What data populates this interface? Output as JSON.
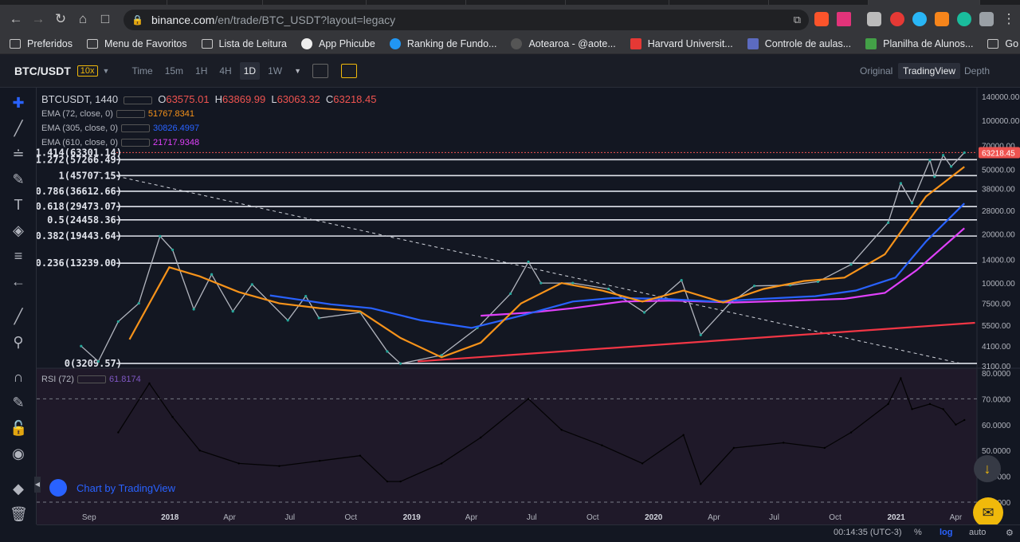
{
  "browser": {
    "url_host": "binance.com",
    "url_path": "/en/trade/BTC_USDT?layout=legacy",
    "bookmarks": [
      "Preferidos",
      "Menu de Favoritos",
      "Lista de Leitura",
      "App Phicube",
      "Ranking de Fundo...",
      "Aotearoa - @aote...",
      "Harvard Universit...",
      "Controle de aulas...",
      "Planilha de Alunos...",
      "Go English"
    ]
  },
  "toolbar": {
    "pair": "BTC/USDT",
    "leverage": "10x",
    "timeframes": [
      "Time",
      "15m",
      "1H",
      "4H",
      "1D",
      "1W"
    ],
    "active_timeframe": "1D",
    "views": [
      "Original",
      "TradingView",
      "Depth"
    ],
    "active_view": "TradingView"
  },
  "legend": {
    "symbol": "BTCUSDT, 1440",
    "open_label": "O",
    "open": "63575.01",
    "high_label": "H",
    "high": "63869.99",
    "low_label": "L",
    "low": "63063.32",
    "close_label": "C",
    "close": "63218.45",
    "ema72_label": "EMA (72, close, 0)",
    "ema72_value": "51767.8341",
    "ema72_color": "#f7931a",
    "ema305_label": "EMA (305, close, 0)",
    "ema305_value": "30826.4997",
    "ema305_color": "#2962ff",
    "ema610_label": "EMA (610, close, 0)",
    "ema610_value": "21717.9348",
    "ema610_color": "#e040fb",
    "rsi_label": "RSI (72)",
    "rsi_value": "61.8174"
  },
  "chart_data": {
    "type": "line",
    "price_axis_ticks": [
      "140000.00",
      "100000.00",
      "70000.00",
      "50000.00",
      "38000.00",
      "28000.00",
      "20000.00",
      "14000.00",
      "10000.00",
      "7500.00",
      "5500.00",
      "4100.00",
      "3100.00"
    ],
    "rsi_axis_ticks": [
      "80.0000",
      "70.0000",
      "60.0000",
      "50.0000",
      "40.0000",
      "30.0000"
    ],
    "time_axis_ticks": [
      "Sep",
      "2018",
      "Apr",
      "Jul",
      "Oct",
      "2019",
      "Apr",
      "Jul",
      "Oct",
      "2020",
      "Apr",
      "Jul",
      "Oct",
      "2021",
      "Apr"
    ],
    "last_price": "63218.45",
    "fib_levels": [
      {
        "label": "1.414(63301.14)",
        "price": 63301.14
      },
      {
        "label": "1.272(57266.49)",
        "price": 57266.49
      },
      {
        "label": "1(45707.15)",
        "price": 45707.15
      },
      {
        "label": "0.786(36612.66)",
        "price": 36612.66
      },
      {
        "label": "0.618(29473.07)",
        "price": 29473.07
      },
      {
        "label": "0.5(24458.36)",
        "price": 24458.36
      },
      {
        "label": "0.382(19443.64)",
        "price": 19443.64
      },
      {
        "label": "0.236(13239.00)",
        "price": 13239.0
      },
      {
        "label": "0(3209.57)",
        "price": 3209.57
      }
    ],
    "close_series": [
      [
        "2017-08-20",
        4100
      ],
      [
        "2017-09-15",
        3300
      ],
      [
        "2017-10-15",
        5800
      ],
      [
        "2017-11-15",
        7500
      ],
      [
        "2017-12-17",
        19400
      ],
      [
        "2018-01-05",
        16000
      ],
      [
        "2018-02-06",
        6900
      ],
      [
        "2018-03-05",
        11300
      ],
      [
        "2018-04-06",
        6700
      ],
      [
        "2018-05-05",
        9800
      ],
      [
        "2018-06-28",
        5900
      ],
      [
        "2018-07-25",
        8300
      ],
      [
        "2018-08-14",
        6100
      ],
      [
        "2018-10-15",
        6600
      ],
      [
        "2018-11-25",
        3800
      ],
      [
        "2018-12-15",
        3200
      ],
      [
        "2019-02-15",
        3600
      ],
      [
        "2019-04-10",
        5300
      ],
      [
        "2019-05-30",
        8600
      ],
      [
        "2019-06-26",
        13500
      ],
      [
        "2019-07-15",
        10000
      ],
      [
        "2019-09-01",
        10000
      ],
      [
        "2019-10-25",
        9200
      ],
      [
        "2019-12-18",
        6600
      ],
      [
        "2020-02-12",
        10400
      ],
      [
        "2020-03-12",
        4800
      ],
      [
        "2020-04-25",
        7500
      ],
      [
        "2020-06-01",
        9600
      ],
      [
        "2020-07-25",
        9700
      ],
      [
        "2020-09-05",
        10200
      ],
      [
        "2020-10-25",
        13000
      ],
      [
        "2020-12-20",
        23500
      ],
      [
        "2021-01-08",
        41000
      ],
      [
        "2021-01-25",
        31000
      ],
      [
        "2021-02-21",
        57000
      ],
      [
        "2021-02-28",
        45000
      ],
      [
        "2021-03-13",
        61000
      ],
      [
        "2021-03-25",
        52000
      ],
      [
        "2021-04-14",
        63218
      ]
    ],
    "ema72_series": [
      [
        "2017-11-01",
        4500
      ],
      [
        "2017-12-31",
        12500
      ],
      [
        "2018-02-15",
        11000
      ],
      [
        "2018-04-15",
        8800
      ],
      [
        "2018-06-15",
        7500
      ],
      [
        "2018-08-15",
        7000
      ],
      [
        "2018-10-15",
        6700
      ],
      [
        "2018-12-15",
        4600
      ],
      [
        "2019-02-15",
        3500
      ],
      [
        "2019-04-15",
        4300
      ],
      [
        "2019-06-15",
        7500
      ],
      [
        "2019-08-15",
        10000
      ],
      [
        "2019-10-15",
        9000
      ],
      [
        "2019-12-15",
        7700
      ],
      [
        "2020-02-15",
        9000
      ],
      [
        "2020-04-15",
        7600
      ],
      [
        "2020-06-15",
        9200
      ],
      [
        "2020-08-15",
        10300
      ],
      [
        "2020-10-15",
        10800
      ],
      [
        "2020-12-15",
        15000
      ],
      [
        "2021-02-15",
        34000
      ],
      [
        "2021-04-14",
        51767
      ]
    ],
    "ema305_series": [
      [
        "2018-06-01",
        8400
      ],
      [
        "2018-09-01",
        7400
      ],
      [
        "2018-11-01",
        7000
      ],
      [
        "2019-01-15",
        5900
      ],
      [
        "2019-04-01",
        5300
      ],
      [
        "2019-06-15",
        6300
      ],
      [
        "2019-09-01",
        7700
      ],
      [
        "2019-11-01",
        8100
      ],
      [
        "2020-01-15",
        8000
      ],
      [
        "2020-04-01",
        7700
      ],
      [
        "2020-06-15",
        8000
      ],
      [
        "2020-09-01",
        8300
      ],
      [
        "2020-11-01",
        9000
      ],
      [
        "2020-12-31",
        10800
      ],
      [
        "2021-02-15",
        18000
      ],
      [
        "2021-04-14",
        30826
      ]
    ],
    "ema610_series": [
      [
        "2019-04-15",
        6300
      ],
      [
        "2019-07-01",
        6600
      ],
      [
        "2019-09-01",
        7000
      ],
      [
        "2019-11-15",
        7700
      ],
      [
        "2020-02-01",
        7800
      ],
      [
        "2020-05-01",
        7600
      ],
      [
        "2020-08-01",
        7800
      ],
      [
        "2020-10-15",
        8000
      ],
      [
        "2020-12-15",
        8700
      ],
      [
        "2021-02-01",
        12000
      ],
      [
        "2021-04-14",
        21717
      ]
    ],
    "red_trendline": [
      [
        "2019-01-10",
        3300
      ],
      [
        "2021-04-30",
        5700
      ]
    ],
    "dashed_trendline": [
      [
        "2017-09-15",
        48000
      ],
      [
        "2021-04-10",
        3200
      ]
    ],
    "rsi_series": [
      [
        "2017-10-15",
        57
      ],
      [
        "2017-12-01",
        76
      ],
      [
        "2018-01-05",
        63
      ],
      [
        "2018-02-15",
        50
      ],
      [
        "2018-04-15",
        45
      ],
      [
        "2018-06-15",
        44
      ],
      [
        "2018-08-15",
        46
      ],
      [
        "2018-10-15",
        48
      ],
      [
        "2018-11-25",
        38
      ],
      [
        "2018-12-15",
        38
      ],
      [
        "2019-02-15",
        45
      ],
      [
        "2019-04-15",
        55
      ],
      [
        "2019-06-26",
        70
      ],
      [
        "2019-08-15",
        58
      ],
      [
        "2019-10-15",
        52
      ],
      [
        "2019-12-15",
        45
      ],
      [
        "2020-02-15",
        56
      ],
      [
        "2020-03-12",
        37
      ],
      [
        "2020-05-01",
        51
      ],
      [
        "2020-07-15",
        53
      ],
      [
        "2020-09-15",
        51
      ],
      [
        "2020-10-25",
        57
      ],
      [
        "2020-12-20",
        68
      ],
      [
        "2021-01-08",
        78
      ],
      [
        "2021-01-25",
        66
      ],
      [
        "2021-02-21",
        68
      ],
      [
        "2021-03-13",
        66
      ],
      [
        "2021-04-01",
        60
      ],
      [
        "2021-04-14",
        61.8
      ]
    ]
  },
  "bottom": {
    "clock": "00:14:35 (UTC-3)",
    "percent": "%",
    "log": "log",
    "auto": "auto"
  },
  "branding": {
    "tv_label": "Chart by TradingView"
  }
}
